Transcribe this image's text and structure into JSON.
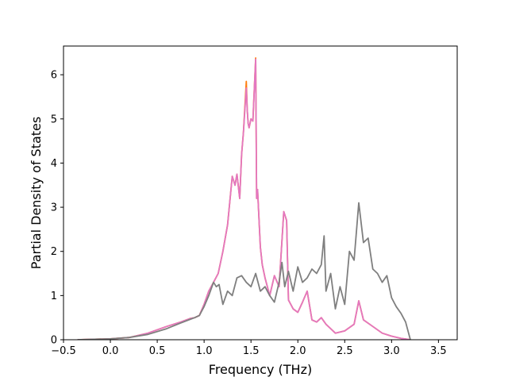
{
  "chart_data": {
    "type": "line",
    "title": "",
    "xlabel": "Frequency (THz)",
    "ylabel": "Partial Density of States",
    "xlim": [
      -0.5,
      3.7
    ],
    "ylim": [
      0,
      6.65
    ],
    "xticks": [
      -0.5,
      0.0,
      0.5,
      1.0,
      1.5,
      2.0,
      2.5,
      3.0,
      3.5
    ],
    "xtick_labels": [
      "−0.5",
      "0.0",
      "0.5",
      "1.0",
      "1.5",
      "2.0",
      "2.5",
      "3.0",
      "3.5"
    ],
    "yticks": [
      0,
      1,
      2,
      3,
      4,
      5,
      6
    ],
    "ytick_labels": [
      "0",
      "1",
      "2",
      "3",
      "4",
      "5",
      "6"
    ],
    "grid": false,
    "legend": false,
    "series": [
      {
        "color": "#ff7f0e",
        "x": [
          -0.35,
          0.0,
          0.2,
          0.4,
          0.6,
          0.75,
          0.85,
          0.9,
          0.95,
          1.0,
          1.05,
          1.1,
          1.15,
          1.2,
          1.25,
          1.3,
          1.33,
          1.35,
          1.38,
          1.4,
          1.42,
          1.45,
          1.46,
          1.47,
          1.48,
          1.5,
          1.52,
          1.55,
          1.56,
          1.57,
          1.6,
          1.62,
          1.65,
          1.7,
          1.75,
          1.8,
          1.85,
          1.88,
          1.9,
          1.95,
          2.0,
          2.05,
          2.1,
          2.15,
          2.2,
          2.25,
          2.3,
          2.4,
          2.5,
          2.6,
          2.65,
          2.7,
          2.8,
          2.9,
          3.0,
          3.1,
          3.2
        ],
        "y": [
          0.0,
          0.02,
          0.05,
          0.15,
          0.3,
          0.4,
          0.48,
          0.5,
          0.55,
          0.8,
          1.1,
          1.3,
          1.5,
          2.0,
          2.6,
          3.7,
          3.5,
          3.75,
          3.2,
          4.2,
          4.7,
          5.85,
          5.2,
          4.9,
          4.8,
          5.0,
          4.95,
          6.38,
          3.2,
          3.4,
          2.1,
          1.7,
          1.4,
          1.0,
          1.45,
          1.2,
          2.9,
          2.7,
          0.9,
          0.7,
          0.62,
          0.85,
          1.1,
          0.45,
          0.4,
          0.5,
          0.35,
          0.15,
          0.2,
          0.35,
          0.88,
          0.45,
          0.3,
          0.15,
          0.08,
          0.03,
          0.0
        ]
      },
      {
        "color": "#e377c2",
        "x": [
          -0.35,
          0.0,
          0.2,
          0.4,
          0.6,
          0.75,
          0.85,
          0.9,
          0.95,
          1.0,
          1.05,
          1.1,
          1.15,
          1.2,
          1.25,
          1.3,
          1.33,
          1.35,
          1.38,
          1.4,
          1.42,
          1.45,
          1.46,
          1.47,
          1.48,
          1.5,
          1.52,
          1.55,
          1.56,
          1.57,
          1.6,
          1.62,
          1.65,
          1.7,
          1.75,
          1.8,
          1.85,
          1.88,
          1.9,
          1.95,
          2.0,
          2.05,
          2.1,
          2.15,
          2.2,
          2.25,
          2.3,
          2.4,
          2.5,
          2.6,
          2.65,
          2.7,
          2.8,
          2.9,
          3.0,
          3.1,
          3.2
        ],
        "y": [
          0.0,
          0.02,
          0.05,
          0.15,
          0.3,
          0.4,
          0.48,
          0.5,
          0.55,
          0.8,
          1.1,
          1.3,
          1.5,
          2.0,
          2.6,
          3.7,
          3.5,
          3.75,
          3.2,
          4.2,
          4.7,
          5.7,
          5.2,
          4.9,
          4.8,
          5.0,
          4.95,
          6.35,
          3.2,
          3.4,
          2.1,
          1.7,
          1.4,
          1.0,
          1.45,
          1.2,
          2.9,
          2.7,
          0.9,
          0.7,
          0.62,
          0.85,
          1.1,
          0.45,
          0.4,
          0.5,
          0.35,
          0.15,
          0.2,
          0.35,
          0.88,
          0.45,
          0.3,
          0.15,
          0.08,
          0.03,
          0.0
        ]
      },
      {
        "color": "#7f7f7f",
        "x": [
          -0.35,
          0.0,
          0.2,
          0.4,
          0.6,
          0.75,
          0.85,
          0.9,
          0.95,
          1.0,
          1.05,
          1.1,
          1.13,
          1.16,
          1.2,
          1.25,
          1.3,
          1.35,
          1.4,
          1.45,
          1.5,
          1.55,
          1.6,
          1.65,
          1.7,
          1.75,
          1.8,
          1.83,
          1.86,
          1.9,
          1.95,
          2.0,
          2.05,
          2.1,
          2.15,
          2.2,
          2.25,
          2.28,
          2.3,
          2.35,
          2.4,
          2.45,
          2.5,
          2.55,
          2.6,
          2.65,
          2.7,
          2.75,
          2.8,
          2.85,
          2.9,
          2.95,
          3.0,
          3.05,
          3.1,
          3.15,
          3.2
        ],
        "y": [
          0.0,
          0.02,
          0.05,
          0.12,
          0.25,
          0.38,
          0.46,
          0.5,
          0.55,
          0.75,
          1.0,
          1.3,
          1.2,
          1.25,
          0.8,
          1.1,
          1.0,
          1.4,
          1.45,
          1.3,
          1.2,
          1.5,
          1.1,
          1.2,
          1.0,
          0.85,
          1.3,
          1.75,
          1.2,
          1.55,
          1.1,
          1.65,
          1.3,
          1.4,
          1.6,
          1.5,
          1.7,
          2.35,
          1.1,
          1.5,
          0.7,
          1.2,
          0.8,
          2.0,
          1.8,
          3.1,
          2.2,
          2.3,
          1.6,
          1.5,
          1.3,
          1.45,
          0.95,
          0.75,
          0.6,
          0.4,
          0.0
        ]
      }
    ]
  }
}
